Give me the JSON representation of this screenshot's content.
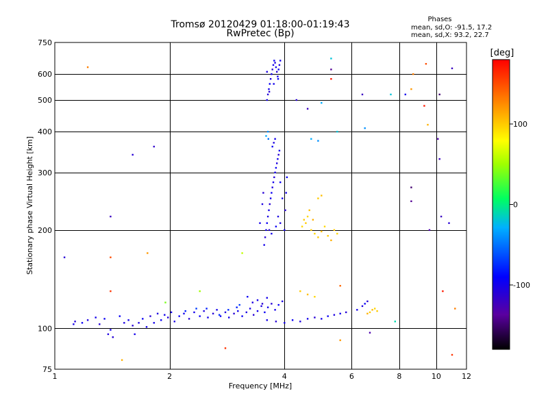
{
  "chart_data": {
    "type": "scatter",
    "title": "Tromsø 20120429 01:18:00-01:19:43",
    "subtitle": "RwPretec (Bp)",
    "stats": {
      "heading": "Phases",
      "line1": "mean, sd,O: -91.5, 17.2",
      "line2": "mean, sd,X:  93.2, 22.7"
    },
    "xlabel": "Frequency [MHz]",
    "ylabel": "Stationary phase Virtual Height [km]",
    "x_scale": "log",
    "y_scale": "log",
    "xlim": [
      1,
      12
    ],
    "ylim": [
      75,
      750
    ],
    "x_ticks": [
      1,
      2,
      4,
      6,
      8,
      10,
      12
    ],
    "y_ticks": [
      75,
      100,
      200,
      300,
      400,
      500,
      600,
      750
    ],
    "grid": true,
    "colorbar": {
      "label": "[deg]",
      "range": [
        -180,
        180
      ],
      "ticks": [
        100,
        0,
        -100
      ]
    },
    "series": [
      {
        "points": [
          [
            1.12,
            103,
            -100
          ],
          [
            1.13,
            105,
            -110
          ],
          [
            1.18,
            104,
            -95
          ],
          [
            1.22,
            106,
            -105
          ],
          [
            1.28,
            108,
            -100
          ],
          [
            1.31,
            103,
            -110
          ],
          [
            1.35,
            107,
            -95
          ],
          [
            1.38,
            96,
            -105
          ],
          [
            1.4,
            99,
            -100
          ],
          [
            1.42,
            94,
            -110
          ],
          [
            1.48,
            109,
            -95
          ],
          [
            1.52,
            104,
            -105
          ],
          [
            1.56,
            106,
            -100
          ],
          [
            1.6,
            102,
            -110
          ],
          [
            1.62,
            96,
            -100
          ],
          [
            1.66,
            104,
            -105
          ],
          [
            1.7,
            107,
            -95
          ],
          [
            1.74,
            101,
            -100
          ],
          [
            1.78,
            109,
            -110
          ],
          [
            1.82,
            104,
            -100
          ],
          [
            1.86,
            111,
            -105
          ],
          [
            1.9,
            106,
            -95
          ],
          [
            1.94,
            110,
            -100
          ],
          [
            1.98,
            108,
            -110
          ],
          [
            2.02,
            112,
            -100
          ],
          [
            2.06,
            105,
            -105
          ],
          [
            2.12,
            109,
            -95
          ],
          [
            2.18,
            111,
            -100
          ],
          [
            2.25,
            107,
            -110
          ],
          [
            2.32,
            112,
            -100
          ],
          [
            2.4,
            109,
            -95
          ],
          [
            2.46,
            113,
            -105
          ],
          [
            2.52,
            108,
            -100
          ],
          [
            2.6,
            111,
            -110
          ],
          [
            2.66,
            114,
            -100
          ],
          [
            2.72,
            109,
            -95
          ],
          [
            2.8,
            112,
            -105
          ],
          [
            2.86,
            108,
            -100
          ],
          [
            2.95,
            111,
            -110
          ],
          [
            3.02,
            113,
            -100
          ],
          [
            3.1,
            109,
            -95
          ],
          [
            3.18,
            112,
            -105
          ],
          [
            3.25,
            115,
            -100
          ],
          [
            3.32,
            110,
            -110
          ],
          [
            3.4,
            113,
            -100
          ],
          [
            3.48,
            117,
            -105
          ],
          [
            3.55,
            112,
            -95
          ],
          [
            3.62,
            116,
            -100
          ],
          [
            3.7,
            119,
            -110
          ],
          [
            3.78,
            114,
            -100
          ],
          [
            3.86,
            118,
            -95
          ],
          [
            3.95,
            121,
            -105
          ],
          [
            3.6,
            106,
            -100
          ],
          [
            3.8,
            105,
            -110
          ],
          [
            4.0,
            104,
            -100
          ],
          [
            4.2,
            106,
            -95
          ],
          [
            4.4,
            105,
            -105
          ],
          [
            4.6,
            107,
            -100
          ],
          [
            4.8,
            108,
            -110
          ],
          [
            5.0,
            107,
            -100
          ],
          [
            5.2,
            109,
            -95
          ],
          [
            5.4,
            110,
            -105
          ],
          [
            5.6,
            111,
            -100
          ],
          [
            5.8,
            112,
            -110
          ],
          [
            6.2,
            114,
            -100
          ],
          [
            6.4,
            117,
            -105
          ],
          [
            6.5,
            119,
            -95
          ],
          [
            6.6,
            121,
            -110
          ],
          [
            2.5,
            115,
            -80
          ],
          [
            2.7,
            110,
            -75
          ],
          [
            3.0,
            116,
            -80
          ],
          [
            3.05,
            118,
            -70
          ],
          [
            2.85,
            114,
            -75
          ],
          [
            2.2,
            113,
            -80
          ],
          [
            2.35,
            115,
            -70
          ],
          [
            3.3,
            120,
            -105
          ],
          [
            3.4,
            122,
            -100
          ],
          [
            3.5,
            119,
            -110
          ],
          [
            3.6,
            124,
            -100
          ],
          [
            3.2,
            125,
            -95
          ],
          [
            3.54,
            180,
            -100
          ],
          [
            3.56,
            190,
            -110
          ],
          [
            3.58,
            200,
            -100
          ],
          [
            3.6,
            210,
            -95
          ],
          [
            3.62,
            220,
            -105
          ],
          [
            3.64,
            230,
            -100
          ],
          [
            3.66,
            240,
            -110
          ],
          [
            3.68,
            250,
            -100
          ],
          [
            3.7,
            260,
            -95
          ],
          [
            3.72,
            270,
            -105
          ],
          [
            3.74,
            280,
            -100
          ],
          [
            3.76,
            290,
            -110
          ],
          [
            3.78,
            300,
            -100
          ],
          [
            3.8,
            310,
            -95
          ],
          [
            3.82,
            320,
            -105
          ],
          [
            3.84,
            330,
            -100
          ],
          [
            3.86,
            340,
            -110
          ],
          [
            3.88,
            350,
            -100
          ],
          [
            3.72,
            360,
            -95
          ],
          [
            3.75,
            370,
            -105
          ],
          [
            3.78,
            380,
            -100
          ],
          [
            3.65,
            200,
            -110
          ],
          [
            3.7,
            195,
            -100
          ],
          [
            3.8,
            205,
            -95
          ],
          [
            3.9,
            210,
            -105
          ],
          [
            4.0,
            200,
            -100
          ],
          [
            4.02,
            230,
            -110
          ],
          [
            4.04,
            260,
            -100
          ],
          [
            4.06,
            290,
            -95
          ],
          [
            3.5,
            240,
            -105
          ],
          [
            3.45,
            210,
            -100
          ],
          [
            3.52,
            260,
            -110
          ],
          [
            3.95,
            250,
            -100
          ],
          [
            3.9,
            280,
            -95
          ],
          [
            3.85,
            220,
            -105
          ],
          [
            3.6,
            500,
            -100
          ],
          [
            3.62,
            520,
            -110
          ],
          [
            3.64,
            540,
            -100
          ],
          [
            3.66,
            560,
            -95
          ],
          [
            3.68,
            580,
            -105
          ],
          [
            3.7,
            600,
            -100
          ],
          [
            3.72,
            620,
            -110
          ],
          [
            3.74,
            640,
            -100
          ],
          [
            3.76,
            660,
            -95
          ],
          [
            3.78,
            650,
            -105
          ],
          [
            3.8,
            630,
            -100
          ],
          [
            3.82,
            610,
            -110
          ],
          [
            3.84,
            590,
            -100
          ],
          [
            3.86,
            620,
            -95
          ],
          [
            3.88,
            640,
            -105
          ],
          [
            3.9,
            660,
            -100
          ],
          [
            3.65,
            530,
            -110
          ],
          [
            3.75,
            560,
            -100
          ],
          [
            3.85,
            580,
            -95
          ],
          [
            3.6,
            610,
            -105
          ],
          [
            4.55,
            210,
            100
          ],
          [
            4.6,
            220,
            95
          ],
          [
            4.65,
            230,
            105
          ],
          [
            4.7,
            200,
            100
          ],
          [
            4.75,
            215,
            110
          ],
          [
            4.8,
            195,
            95
          ],
          [
            4.9,
            190,
            100
          ],
          [
            5.0,
            198,
            105
          ],
          [
            5.1,
            205,
            95
          ],
          [
            5.2,
            192,
            100
          ],
          [
            5.3,
            186,
            110
          ],
          [
            5.4,
            200,
            100
          ],
          [
            4.45,
            205,
            95
          ],
          [
            4.5,
            215,
            100
          ],
          [
            5.0,
            255,
            105
          ],
          [
            4.9,
            250,
            100
          ],
          [
            5.5,
            195,
            95
          ],
          [
            4.4,
            130,
            100
          ],
          [
            4.6,
            127,
            105
          ],
          [
            4.8,
            125,
            95
          ],
          [
            6.7,
            112,
            100
          ],
          [
            6.8,
            114,
            105
          ],
          [
            6.9,
            115,
            95
          ],
          [
            7.0,
            113,
            100
          ],
          [
            6.6,
            111,
            110
          ],
          [
            3.62,
            400,
            -40
          ],
          [
            3.58,
            388,
            -30
          ],
          [
            3.63,
            380,
            -50
          ],
          [
            4.9,
            375,
            -40
          ],
          [
            5.5,
            400,
            -20
          ],
          [
            4.7,
            380,
            -30
          ],
          [
            6.5,
            410,
            -40
          ],
          [
            7.6,
            520,
            -20
          ],
          [
            5.0,
            490,
            -30
          ],
          [
            5.3,
            670,
            -20
          ],
          [
            7.8,
            105,
            -10
          ],
          [
            3.1,
            170,
            60
          ],
          [
            2.4,
            130,
            50
          ],
          [
            1.95,
            120,
            40
          ],
          [
            5.6,
            135,
            140
          ],
          [
            1.22,
            630,
            130
          ],
          [
            1.4,
            165,
            150
          ],
          [
            1.4,
            130,
            160
          ],
          [
            1.5,
            80,
            110
          ],
          [
            1.75,
            170,
            120
          ],
          [
            2.8,
            87,
            160
          ],
          [
            8.7,
            600,
            130
          ],
          [
            9.4,
            645,
            150
          ],
          [
            9.3,
            480,
            170
          ],
          [
            8.6,
            540,
            120
          ],
          [
            9.5,
            420,
            110
          ],
          [
            10.4,
            130,
            170
          ],
          [
            11.0,
            83,
            160
          ],
          [
            11.2,
            115,
            130
          ],
          [
            5.6,
            92,
            120
          ],
          [
            5.3,
            580,
            170
          ],
          [
            10.2,
            520,
            -150
          ],
          [
            10.1,
            380,
            -130
          ],
          [
            10.2,
            330,
            -120
          ],
          [
            5.3,
            620,
            -140
          ],
          [
            6.4,
            520,
            -120
          ],
          [
            6.7,
            97,
            -130
          ],
          [
            4.6,
            470,
            -120
          ],
          [
            8.6,
            270,
            -150
          ],
          [
            8.6,
            245,
            -140
          ],
          [
            9.6,
            200,
            -130
          ],
          [
            10.3,
            220,
            -120
          ],
          [
            10.8,
            210,
            -110
          ],
          [
            1.6,
            340,
            -110
          ],
          [
            1.4,
            220,
            -120
          ],
          [
            1.82,
            360,
            -115
          ],
          [
            1.06,
            165,
            -110
          ],
          [
            8.3,
            520,
            -100
          ],
          [
            4.3,
            500,
            -110
          ],
          [
            11.0,
            625,
            -120
          ]
        ]
      }
    ]
  }
}
